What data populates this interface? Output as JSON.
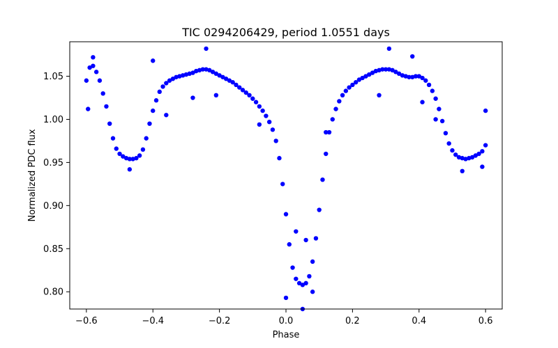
{
  "chart_data": {
    "type": "scatter",
    "title": "TIC 0294206429, period 1.0551 days",
    "xlabel": "Phase",
    "ylabel": "Normalized PDC flux",
    "xlim": [
      -0.65,
      0.65
    ],
    "ylim": [
      0.78,
      1.09
    ],
    "xticks": [
      -0.6,
      -0.4,
      -0.2,
      0.0,
      0.2,
      0.4,
      0.6
    ],
    "xtick_labels": [
      "−0.6",
      "−0.4",
      "−0.2",
      "0.0",
      "0.2",
      "0.4",
      "0.6"
    ],
    "yticks": [
      0.8,
      0.85,
      0.9,
      0.95,
      1.0,
      1.05
    ],
    "ytick_labels": [
      "0.80",
      "0.85",
      "0.90",
      "0.95",
      "1.00",
      "1.05"
    ],
    "grid": false,
    "series": [
      {
        "color": "#0000ff",
        "marker": "circle",
        "points": [
          [
            -0.6,
            1.045
          ],
          [
            -0.59,
            1.06
          ],
          [
            -0.58,
            1.062
          ],
          [
            -0.57,
            1.055
          ],
          [
            -0.56,
            1.045
          ],
          [
            -0.55,
            1.03
          ],
          [
            -0.54,
            1.015
          ],
          [
            -0.53,
            0.995
          ],
          [
            -0.52,
            0.978
          ],
          [
            -0.51,
            0.966
          ],
          [
            -0.5,
            0.96
          ],
          [
            -0.49,
            0.957
          ],
          [
            -0.48,
            0.955
          ],
          [
            -0.47,
            0.954
          ],
          [
            -0.46,
            0.954
          ],
          [
            -0.45,
            0.955
          ],
          [
            -0.44,
            0.958
          ],
          [
            -0.43,
            0.965
          ],
          [
            -0.42,
            0.978
          ],
          [
            -0.41,
            0.995
          ],
          [
            -0.4,
            1.01
          ],
          [
            -0.39,
            1.022
          ],
          [
            -0.38,
            1.032
          ],
          [
            -0.37,
            1.038
          ],
          [
            -0.36,
            1.042
          ],
          [
            -0.35,
            1.045
          ],
          [
            -0.34,
            1.047
          ],
          [
            -0.33,
            1.049
          ],
          [
            -0.32,
            1.05
          ],
          [
            -0.31,
            1.051
          ],
          [
            -0.3,
            1.052
          ],
          [
            -0.29,
            1.053
          ],
          [
            -0.28,
            1.054
          ],
          [
            -0.27,
            1.056
          ],
          [
            -0.26,
            1.057
          ],
          [
            -0.25,
            1.058
          ],
          [
            -0.24,
            1.058
          ],
          [
            -0.23,
            1.057
          ],
          [
            -0.22,
            1.055
          ],
          [
            -0.21,
            1.053
          ],
          [
            -0.2,
            1.051
          ],
          [
            -0.19,
            1.049
          ],
          [
            -0.18,
            1.047
          ],
          [
            -0.17,
            1.045
          ],
          [
            -0.16,
            1.043
          ],
          [
            -0.15,
            1.04
          ],
          [
            -0.14,
            1.037
          ],
          [
            -0.13,
            1.034
          ],
          [
            -0.12,
            1.031
          ],
          [
            -0.11,
            1.028
          ],
          [
            -0.1,
            1.024
          ],
          [
            -0.09,
            1.02
          ],
          [
            -0.08,
            1.015
          ],
          [
            -0.07,
            1.01
          ],
          [
            -0.06,
            1.004
          ],
          [
            -0.05,
            0.997
          ],
          [
            -0.04,
            0.988
          ],
          [
            -0.03,
            0.975
          ],
          [
            -0.02,
            0.955
          ],
          [
            -0.01,
            0.925
          ],
          [
            0.0,
            0.89
          ],
          [
            0.01,
            0.855
          ],
          [
            0.02,
            0.828
          ],
          [
            0.03,
            0.815
          ],
          [
            0.04,
            0.81
          ],
          [
            0.05,
            0.808
          ],
          [
            0.06,
            0.81
          ],
          [
            0.07,
            0.818
          ],
          [
            0.08,
            0.835
          ],
          [
            0.09,
            0.862
          ],
          [
            0.1,
            0.895
          ],
          [
            0.11,
            0.93
          ],
          [
            0.12,
            0.96
          ],
          [
            0.13,
            0.985
          ],
          [
            0.14,
            1.0
          ],
          [
            0.15,
            1.012
          ],
          [
            0.16,
            1.021
          ],
          [
            0.17,
            1.028
          ],
          [
            0.18,
            1.033
          ],
          [
            0.19,
            1.037
          ],
          [
            0.2,
            1.04
          ],
          [
            0.21,
            1.043
          ],
          [
            0.22,
            1.046
          ],
          [
            0.23,
            1.048
          ],
          [
            0.24,
            1.05
          ],
          [
            0.25,
            1.052
          ],
          [
            0.26,
            1.054
          ],
          [
            0.27,
            1.056
          ],
          [
            0.28,
            1.057
          ],
          [
            0.29,
            1.058
          ],
          [
            0.3,
            1.058
          ],
          [
            0.31,
            1.058
          ],
          [
            0.32,
            1.057
          ],
          [
            0.33,
            1.055
          ],
          [
            0.34,
            1.053
          ],
          [
            0.35,
            1.051
          ],
          [
            0.36,
            1.05
          ],
          [
            0.37,
            1.049
          ],
          [
            0.38,
            1.049
          ],
          [
            0.39,
            1.05
          ],
          [
            0.4,
            1.05
          ],
          [
            0.41,
            1.048
          ],
          [
            0.42,
            1.045
          ],
          [
            0.43,
            1.04
          ],
          [
            0.44,
            1.033
          ],
          [
            0.45,
            1.024
          ],
          [
            0.46,
            1.012
          ],
          [
            0.47,
            0.998
          ],
          [
            0.48,
            0.984
          ],
          [
            0.49,
            0.972
          ],
          [
            0.5,
            0.964
          ],
          [
            0.51,
            0.959
          ],
          [
            0.52,
            0.956
          ],
          [
            0.53,
            0.955
          ],
          [
            0.54,
            0.954
          ],
          [
            0.55,
            0.955
          ],
          [
            0.56,
            0.956
          ],
          [
            0.57,
            0.958
          ],
          [
            0.58,
            0.96
          ],
          [
            0.59,
            0.963
          ],
          [
            0.6,
            0.97
          ],
          [
            -0.595,
            1.012
          ],
          [
            -0.36,
            1.005
          ],
          [
            -0.28,
            1.025
          ],
          [
            -0.21,
            1.028
          ],
          [
            -0.08,
            0.994
          ],
          [
            0.06,
            0.86
          ],
          [
            0.03,
            0.87
          ],
          [
            0.12,
            0.985
          ],
          [
            0.28,
            1.028
          ],
          [
            0.41,
            1.02
          ],
          [
            0.45,
            1.0
          ],
          [
            0.6,
            1.01
          ],
          [
            0.59,
            0.945
          ],
          [
            -0.47,
            0.942
          ],
          [
            0.53,
            0.94
          ],
          [
            0.0,
            0.793
          ],
          [
            0.05,
            0.78
          ],
          [
            0.08,
            0.8
          ],
          [
            -0.58,
            1.072
          ],
          [
            0.31,
            1.082
          ],
          [
            -0.24,
            1.082
          ],
          [
            0.38,
            1.073
          ],
          [
            -0.4,
            1.068
          ]
        ]
      }
    ]
  }
}
